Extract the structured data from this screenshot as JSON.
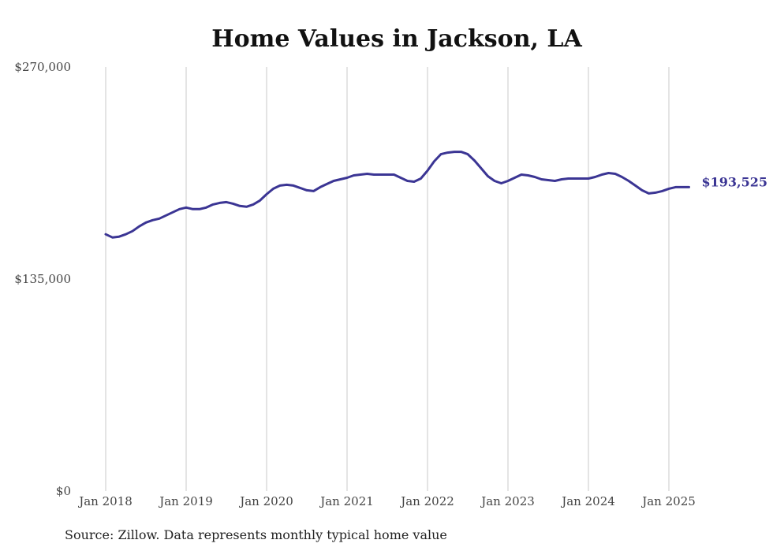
{
  "chart_data": {
    "type": "line",
    "title": "Home Values in Jackson, LA",
    "xlabel": "",
    "ylabel": "",
    "ylim": [
      0,
      270000
    ],
    "yticks": [
      {
        "value": 0,
        "label": "$0"
      },
      {
        "value": 135000,
        "label": "$135,000"
      },
      {
        "value": 270000,
        "label": "$270,000"
      }
    ],
    "xticks": [
      {
        "value": "2018-01",
        "label": "Jan 2018"
      },
      {
        "value": "2019-01",
        "label": "Jan 2019"
      },
      {
        "value": "2020-01",
        "label": "Jan 2020"
      },
      {
        "value": "2021-01",
        "label": "Jan 2021"
      },
      {
        "value": "2022-01",
        "label": "Jan 2022"
      },
      {
        "value": "2023-01",
        "label": "Jan 2023"
      },
      {
        "value": "2024-01",
        "label": "Jan 2024"
      },
      {
        "value": "2025-01",
        "label": "Jan 2025"
      }
    ],
    "grid": {
      "vertical": true,
      "horizontal": false
    },
    "legend": "none",
    "series": [
      {
        "color": "#3b3594",
        "end_label": "$193,525",
        "x": [
          "2018-01",
          "2018-02",
          "2018-03",
          "2018-04",
          "2018-05",
          "2018-06",
          "2018-07",
          "2018-08",
          "2018-09",
          "2018-10",
          "2018-11",
          "2018-12",
          "2019-01",
          "2019-02",
          "2019-03",
          "2019-04",
          "2019-05",
          "2019-06",
          "2019-07",
          "2019-08",
          "2019-09",
          "2019-10",
          "2019-11",
          "2019-12",
          "2020-01",
          "2020-02",
          "2020-03",
          "2020-04",
          "2020-05",
          "2020-06",
          "2020-07",
          "2020-08",
          "2020-09",
          "2020-10",
          "2020-11",
          "2020-12",
          "2021-01",
          "2021-02",
          "2021-03",
          "2021-04",
          "2021-05",
          "2021-06",
          "2021-07",
          "2021-08",
          "2021-09",
          "2021-10",
          "2021-11",
          "2021-12",
          "2022-01",
          "2022-02",
          "2022-03",
          "2022-04",
          "2022-05",
          "2022-06",
          "2022-07",
          "2022-08",
          "2022-09",
          "2022-10",
          "2022-11",
          "2022-12",
          "2023-01",
          "2023-02",
          "2023-03",
          "2023-04",
          "2023-05",
          "2023-06",
          "2023-07",
          "2023-08",
          "2023-09",
          "2023-10",
          "2023-11",
          "2023-12",
          "2024-01",
          "2024-02",
          "2024-03",
          "2024-04",
          "2024-05",
          "2024-06",
          "2024-07",
          "2024-08",
          "2024-09",
          "2024-10",
          "2024-11",
          "2024-12",
          "2025-01",
          "2025-02",
          "2025-03",
          "2025-04"
        ],
        "values": [
          163500,
          161500,
          162000,
          163500,
          165500,
          168500,
          171000,
          172500,
          173500,
          175500,
          177500,
          179500,
          180500,
          179500,
          179500,
          180500,
          182500,
          183500,
          184000,
          183000,
          181500,
          181000,
          182500,
          185000,
          189000,
          192500,
          194500,
          195000,
          194500,
          193000,
          191500,
          191000,
          193500,
          195500,
          197500,
          198500,
          199500,
          201000,
          201500,
          202000,
          201500,
          201500,
          201500,
          201500,
          199500,
          197500,
          197000,
          199000,
          204000,
          210000,
          214500,
          215500,
          216000,
          216000,
          214500,
          210500,
          205500,
          200500,
          197500,
          196000,
          197500,
          199500,
          201500,
          201000,
          200000,
          198500,
          198000,
          197500,
          198500,
          199000,
          199000,
          199000,
          199000,
          200000,
          201500,
          202500,
          202000,
          200000,
          197500,
          194500,
          191500,
          189500,
          190000,
          191000,
          192500,
          193500,
          193500,
          193525
        ]
      }
    ]
  },
  "source": "Source: Zillow. Data represents monthly typical home value"
}
